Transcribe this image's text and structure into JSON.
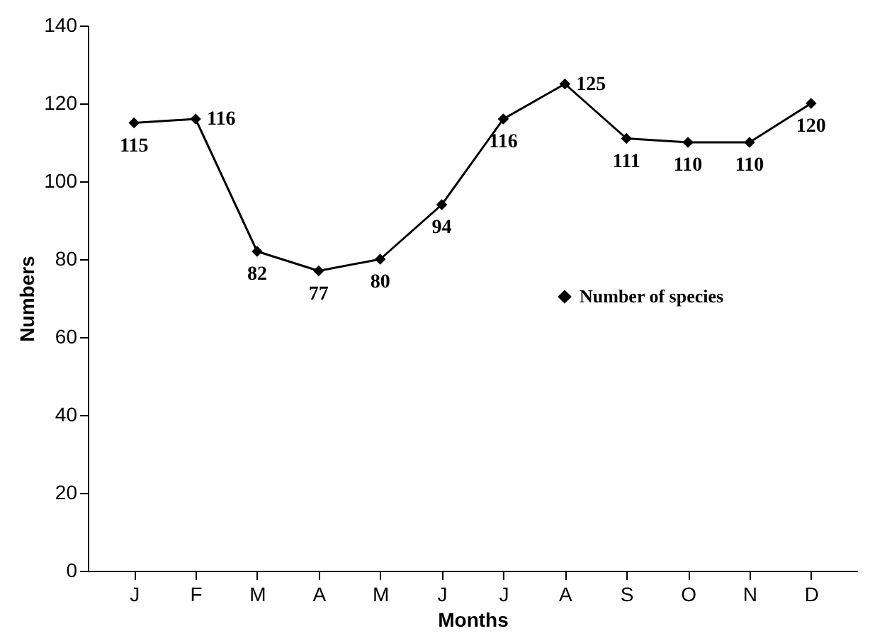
{
  "chart_data": {
    "type": "line",
    "xlabel": "Months",
    "ylabel": "Numbers",
    "categories": [
      "J",
      "F",
      "M",
      "A",
      "M",
      "J",
      "J",
      "A",
      "S",
      "O",
      "N",
      "D"
    ],
    "series": [
      {
        "name": "Number of species",
        "color": "#000000",
        "values": [
          115,
          116,
          82,
          77,
          80,
          94,
          116,
          125,
          111,
          110,
          110,
          120
        ]
      }
    ],
    "ylim": [
      0,
      140
    ],
    "yticks": [
      0,
      20,
      40,
      60,
      80,
      100,
      120,
      140
    ],
    "grid": false,
    "legend": "right",
    "marker": "diamond",
    "line_style": "solid",
    "data_labels": true
  }
}
